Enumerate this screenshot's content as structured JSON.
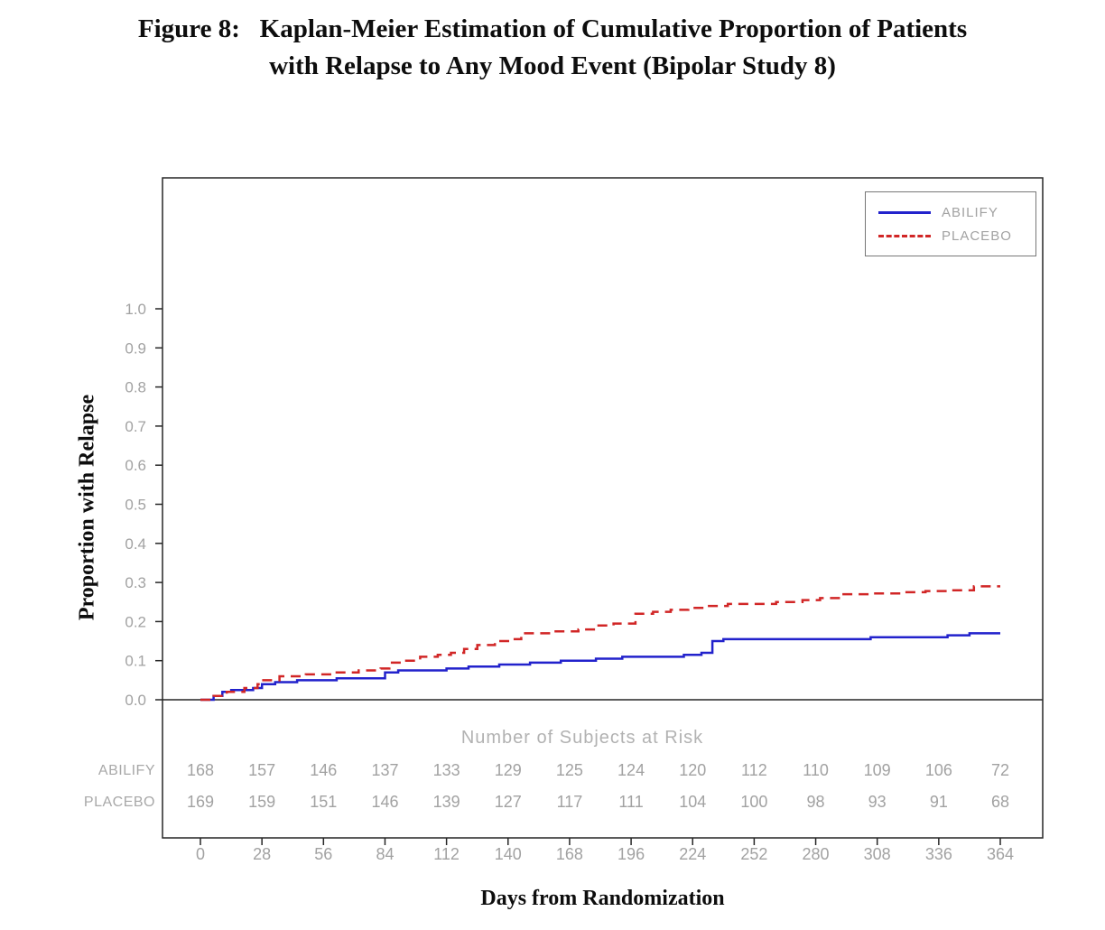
{
  "figure": {
    "title_line1": "Figure 8:   Kaplan-Meier Estimation of Cumulative Proportion of Patients",
    "title_line2": "with Relapse to Any Mood Event (Bipolar Study 8)"
  },
  "chart_data": {
    "type": "line",
    "subtype": "kaplan-meier-step",
    "xlabel": "Days from Randomization",
    "ylabel": "Proportion with Relapse",
    "xlim": [
      0,
      364
    ],
    "ylim": [
      0.0,
      1.0
    ],
    "x_ticks": [
      0,
      28,
      56,
      84,
      112,
      140,
      168,
      196,
      224,
      252,
      280,
      308,
      336,
      364
    ],
    "y_ticks": [
      0.0,
      0.1,
      0.2,
      0.3,
      0.4,
      0.5,
      0.6,
      0.7,
      0.8,
      0.9,
      1.0
    ],
    "grid": false,
    "legend": {
      "position": "top-right",
      "entries": [
        {
          "label": "ABILIFY",
          "color": "#2222cc",
          "style": "solid"
        },
        {
          "label": "PLACEBO",
          "color": "#d12626",
          "style": "dashed"
        }
      ]
    },
    "series": [
      {
        "name": "ABILIFY",
        "color": "#2222cc",
        "line_style": "solid",
        "points": [
          [
            0,
            0.0
          ],
          [
            6,
            0.01
          ],
          [
            10,
            0.02
          ],
          [
            14,
            0.025
          ],
          [
            24,
            0.03
          ],
          [
            28,
            0.04
          ],
          [
            34,
            0.045
          ],
          [
            44,
            0.05
          ],
          [
            62,
            0.055
          ],
          [
            84,
            0.07
          ],
          [
            90,
            0.075
          ],
          [
            112,
            0.08
          ],
          [
            122,
            0.085
          ],
          [
            136,
            0.09
          ],
          [
            150,
            0.095
          ],
          [
            164,
            0.1
          ],
          [
            180,
            0.105
          ],
          [
            192,
            0.11
          ],
          [
            220,
            0.115
          ],
          [
            228,
            0.12
          ],
          [
            233,
            0.15
          ],
          [
            238,
            0.155
          ],
          [
            305,
            0.16
          ],
          [
            340,
            0.165
          ],
          [
            350,
            0.17
          ],
          [
            364,
            0.17
          ]
        ]
      },
      {
        "name": "PLACEBO",
        "color": "#d12626",
        "line_style": "dashed",
        "points": [
          [
            0,
            0.0
          ],
          [
            6,
            0.01
          ],
          [
            12,
            0.02
          ],
          [
            20,
            0.03
          ],
          [
            26,
            0.04
          ],
          [
            28,
            0.05
          ],
          [
            36,
            0.06
          ],
          [
            48,
            0.065
          ],
          [
            60,
            0.07
          ],
          [
            72,
            0.075
          ],
          [
            82,
            0.08
          ],
          [
            86,
            0.095
          ],
          [
            92,
            0.1
          ],
          [
            100,
            0.11
          ],
          [
            108,
            0.115
          ],
          [
            114,
            0.12
          ],
          [
            120,
            0.13
          ],
          [
            126,
            0.14
          ],
          [
            134,
            0.15
          ],
          [
            142,
            0.155
          ],
          [
            146,
            0.17
          ],
          [
            160,
            0.175
          ],
          [
            172,
            0.18
          ],
          [
            180,
            0.19
          ],
          [
            188,
            0.195
          ],
          [
            198,
            0.22
          ],
          [
            206,
            0.225
          ],
          [
            214,
            0.23
          ],
          [
            222,
            0.235
          ],
          [
            230,
            0.24
          ],
          [
            240,
            0.245
          ],
          [
            262,
            0.25
          ],
          [
            274,
            0.255
          ],
          [
            282,
            0.26
          ],
          [
            292,
            0.27
          ],
          [
            306,
            0.272
          ],
          [
            318,
            0.275
          ],
          [
            330,
            0.278
          ],
          [
            340,
            0.28
          ],
          [
            352,
            0.29
          ],
          [
            364,
            0.29
          ]
        ]
      }
    ],
    "at_risk": {
      "header": "Number of Subjects at Risk",
      "days": [
        0,
        28,
        56,
        84,
        112,
        140,
        168,
        196,
        224,
        252,
        280,
        308,
        336,
        364
      ],
      "rows": [
        {
          "label": "ABILIFY",
          "counts": [
            168,
            157,
            146,
            137,
            133,
            129,
            125,
            124,
            120,
            112,
            110,
            109,
            106,
            72
          ]
        },
        {
          "label": "PLACEBO",
          "counts": [
            169,
            159,
            151,
            146,
            139,
            127,
            117,
            111,
            104,
            100,
            98,
            93,
            91,
            68
          ]
        }
      ]
    },
    "colors": {
      "abilify": "#2222cc",
      "placebo": "#d12626",
      "axis": "#262626",
      "muted_text": "#a2a2a2"
    }
  }
}
